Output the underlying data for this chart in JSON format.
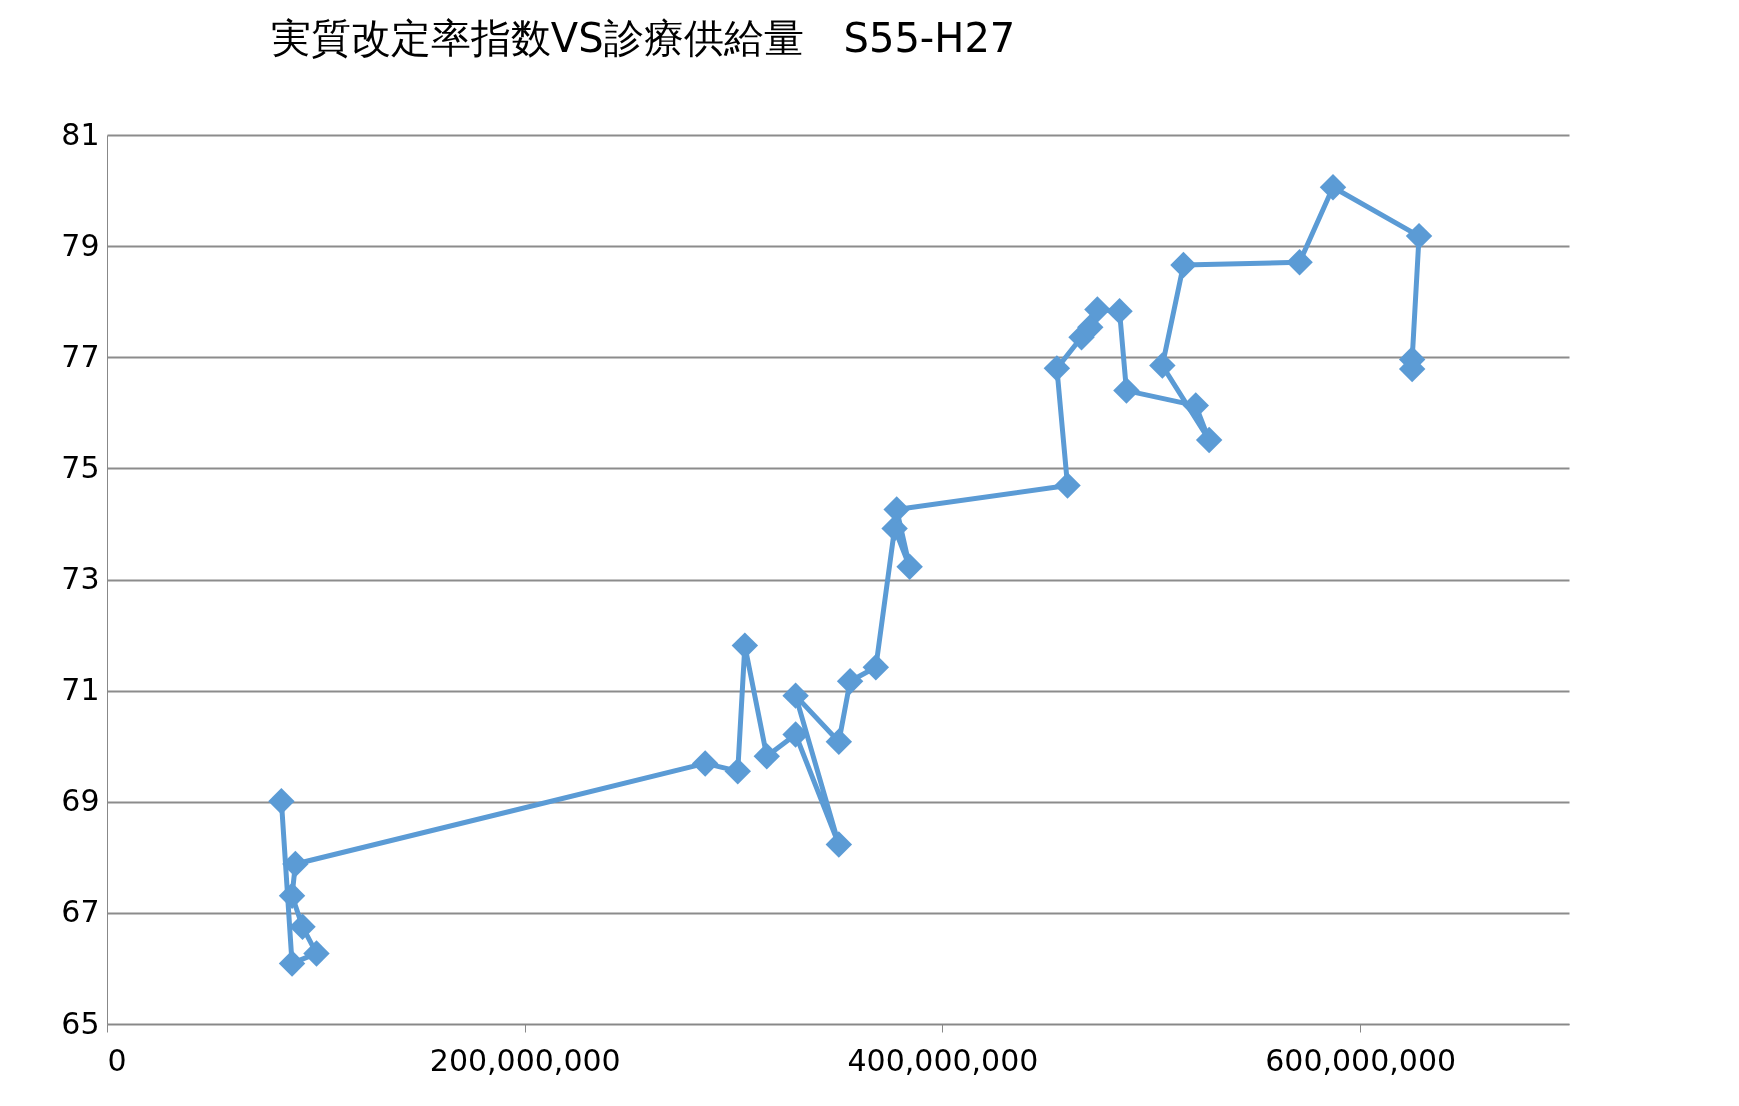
{
  "chart_data": {
    "type": "line",
    "title": "実質改定率指数VS診療供給量　S55-H27",
    "x": [
      83500000,
      88600000,
      100300000,
      93600000,
      88600000,
      90200000,
      286400000,
      302000000,
      305400000,
      315900000,
      329700000,
      350400000,
      329700000,
      350400000,
      355800000,
      368100000,
      377100000,
      384300000,
      378100000,
      459900000,
      454800000,
      466600000,
      470800000,
      474200000,
      484800000,
      488100000,
      521300000,
      527700000,
      505300000,
      515400000,
      571000000,
      587000000,
      628200000,
      624900000,
      624900000
    ],
    "series": [
      {
        "color": "#5b9bd5",
        "values": [
          69.01,
          66.09,
          66.27,
          66.75,
          67.31,
          67.88,
          69.69,
          69.55,
          71.81,
          69.82,
          70.21,
          68.23,
          70.91,
          70.08,
          71.17,
          71.42,
          73.92,
          73.23,
          74.26,
          74.69,
          76.8,
          77.36,
          77.54,
          77.86,
          77.83,
          76.4,
          76.13,
          75.51,
          76.85,
          78.66,
          78.71,
          80.06,
          79.18,
          76.96,
          76.79
        ]
      }
    ],
    "xlim": [
      0,
      700000000
    ],
    "xticks": [
      0,
      {
        "value": 200000000,
        "label": "200,000,000"
      },
      {
        "value": 400000000,
        "label": "400,000,000"
      },
      {
        "value": 600000000,
        "label": "600,000,000"
      }
    ],
    "ylim": [
      65,
      81
    ],
    "yticks": [
      65,
      67,
      69,
      71,
      73,
      75,
      77,
      79,
      81
    ],
    "grid": "y",
    "marker": "diamond",
    "line_style": "solid"
  }
}
